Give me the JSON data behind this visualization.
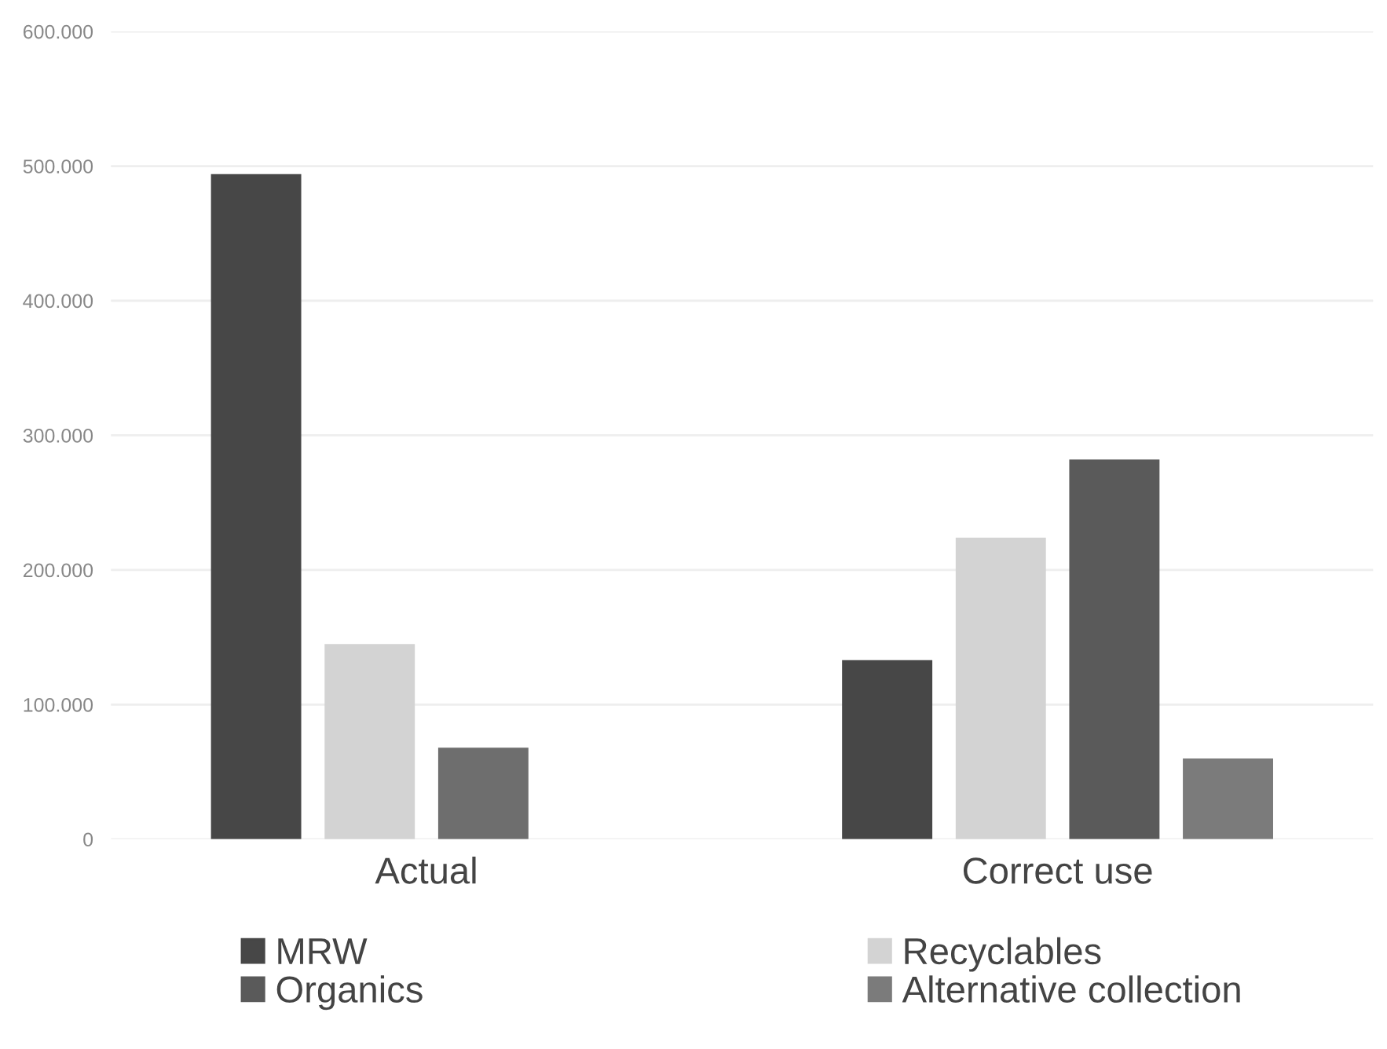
{
  "chart_data": {
    "type": "bar",
    "categories": [
      "Actual",
      "Correct use"
    ],
    "series": [
      {
        "name": "MRW",
        "color": "#474747",
        "values": [
          494000,
          133000
        ]
      },
      {
        "name": "Recyclables",
        "color": "#d3d3d3",
        "values": [
          145000,
          224000
        ]
      },
      {
        "name": "Organics",
        "color": "#5a5a5a",
        "colors": [
          "#6e6e6e",
          "#5a5a5a"
        ],
        "values": [
          68000,
          282000
        ]
      },
      {
        "name": "Alternative collection",
        "color": "#7b7b7b",
        "values": [
          null,
          60000
        ]
      }
    ],
    "ylim": [
      0,
      600000
    ],
    "yticks": [
      {
        "value": 0,
        "label": "0"
      },
      {
        "value": 100000,
        "label": "100.000"
      },
      {
        "value": 200000,
        "label": "200.000"
      },
      {
        "value": 300000,
        "label": "300.000"
      },
      {
        "value": 400000,
        "label": "400.000"
      },
      {
        "value": 500000,
        "label": "500.000"
      },
      {
        "value": 600000,
        "label": "600.000"
      }
    ],
    "grid": "y",
    "legend": "bottom"
  }
}
